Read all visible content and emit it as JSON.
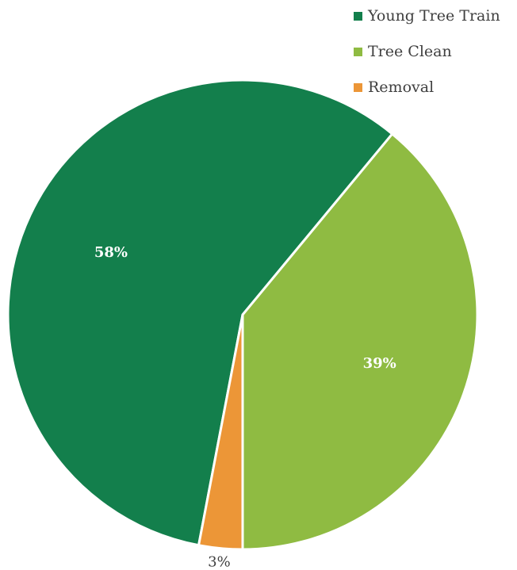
{
  "chart_data": {
    "type": "pie",
    "categories": [
      "Young Tree Train",
      "Tree Clean",
      "Removal"
    ],
    "values": [
      58,
      39,
      3
    ],
    "data_labels": [
      "58%",
      "39%",
      "3%"
    ],
    "colors": [
      "#137f4c",
      "#8fbb42",
      "#ec9637"
    ],
    "label_colors": [
      "#ffffff",
      "#ffffff",
      "#404040"
    ],
    "legend_position": "top-right",
    "title": ""
  }
}
